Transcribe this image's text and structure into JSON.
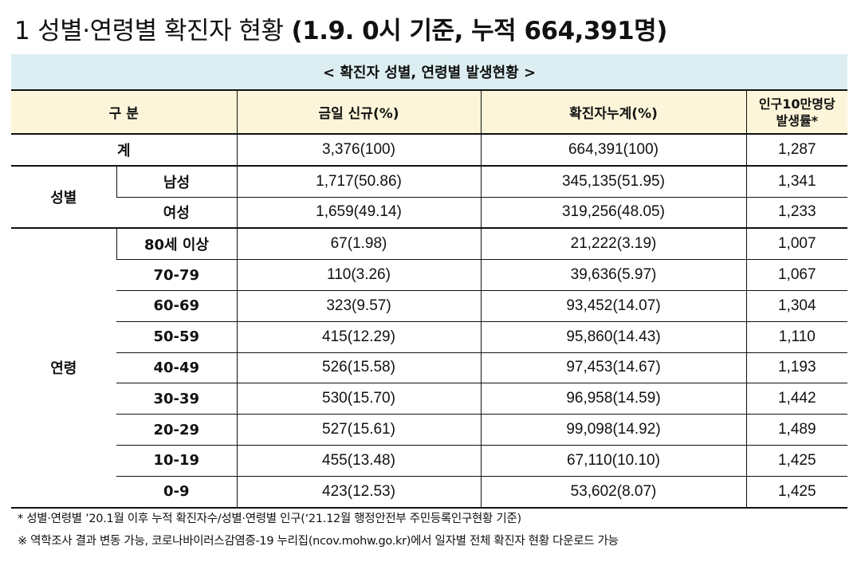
{
  "title": {
    "number": "1",
    "main": "성별·연령별 확진자 현황",
    "sub": "(1.9. 0시 기준, 누적 664,391명)"
  },
  "table": {
    "caption": "< 확진자 성별, 연령별 발생현황 >",
    "headers": {
      "category": "구 분",
      "new_today": "금일 신규(%)",
      "cumulative": "확진자누계(%)",
      "rate_line1": "인구10만명당",
      "rate_line2": "발생률*"
    },
    "total": {
      "label": "계",
      "new_today": "3,376(100)",
      "cumulative": "664,391(100)",
      "rate": "1,287"
    },
    "sex": {
      "label": "성별",
      "rows": [
        {
          "label": "남성",
          "new_today": "1,717(50.86)",
          "cumulative": "345,135(51.95)",
          "rate": "1,341"
        },
        {
          "label": "여성",
          "new_today": "1,659(49.14)",
          "cumulative": "319,256(48.05)",
          "rate": "1,233"
        }
      ]
    },
    "age": {
      "label": "연령",
      "rows": [
        {
          "label": "80세 이상",
          "new_today": "67(1.98)",
          "cumulative": "21,222(3.19)",
          "rate": "1,007"
        },
        {
          "label": "70-79",
          "new_today": "110(3.26)",
          "cumulative": "39,636(5.97)",
          "rate": "1,067"
        },
        {
          "label": "60-69",
          "new_today": "323(9.57)",
          "cumulative": "93,452(14.07)",
          "rate": "1,304"
        },
        {
          "label": "50-59",
          "new_today": "415(12.29)",
          "cumulative": "95,860(14.43)",
          "rate": "1,110"
        },
        {
          "label": "40-49",
          "new_today": "526(15.58)",
          "cumulative": "97,453(14.67)",
          "rate": "1,193"
        },
        {
          "label": "30-39",
          "new_today": "530(15.70)",
          "cumulative": "96,958(14.59)",
          "rate": "1,442"
        },
        {
          "label": "20-29",
          "new_today": "527(15.61)",
          "cumulative": "99,098(14.92)",
          "rate": "1,489"
        },
        {
          "label": "10-19",
          "new_today": "455(13.48)",
          "cumulative": "67,110(10.10)",
          "rate": "1,425"
        },
        {
          "label": "0-9",
          "new_today": "423(12.53)",
          "cumulative": "53,602(8.07)",
          "rate": "1,425"
        }
      ]
    }
  },
  "notes": [
    "* 성별·연령별 ’20.1월 이후 누적 확진자수/성별·연령별 인구(‘21.12월 행정안전부 주민등록인구현황 기준)",
    "※ 역학조사 결과 변동 가능, 코로나바이러스감염증-19 누리집(ncov.mohw.go.kr)에서 일자별 전체 확진자 현황 다운로드 가능"
  ]
}
